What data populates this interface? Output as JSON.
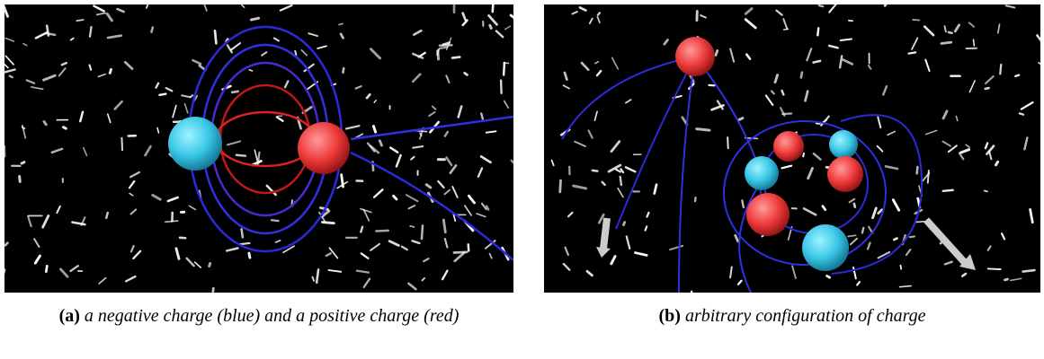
{
  "figure": {
    "panels": [
      {
        "label": "(a)",
        "caption": "a negative charge (blue) and a positive charge (red)"
      },
      {
        "label": "(b)",
        "caption": "arbitrary configuration of charge"
      }
    ]
  }
}
